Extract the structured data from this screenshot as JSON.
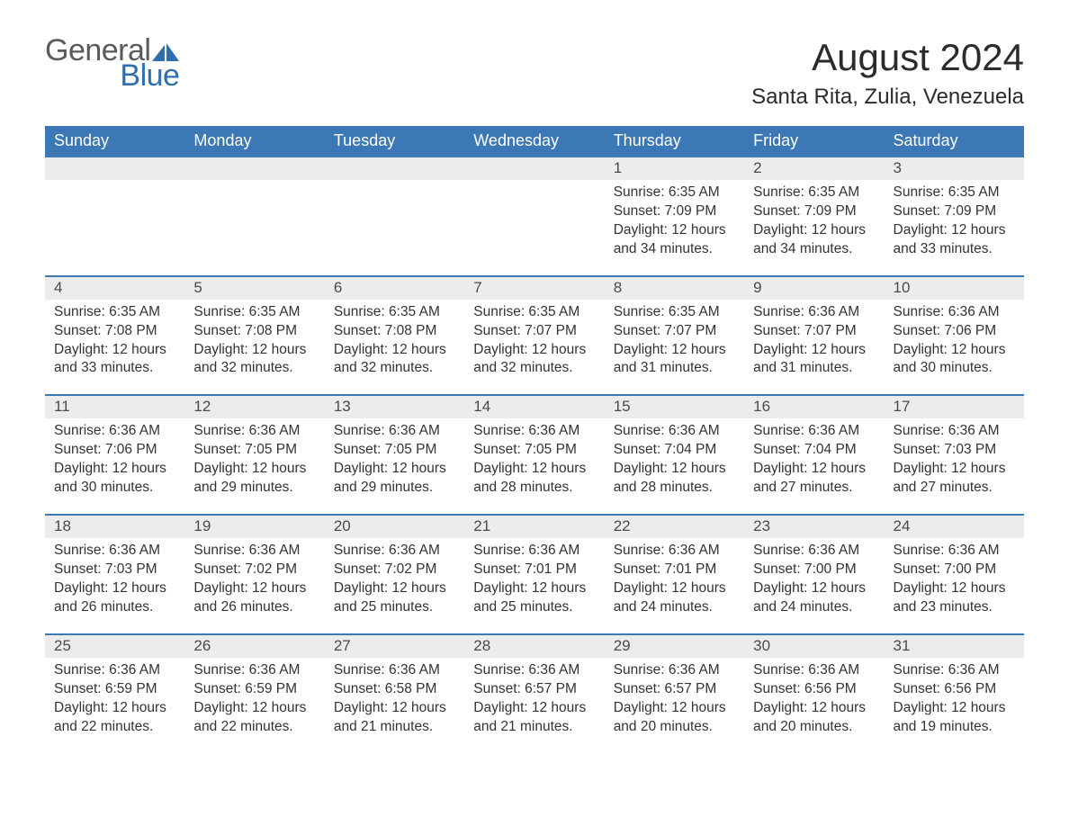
{
  "logo": {
    "text_general": "General",
    "text_blue": "Blue",
    "icon_color": "#2f6fb0"
  },
  "title": "August 2024",
  "location": "Santa Rita, Zulia, Venezuela",
  "colors": {
    "header_bg": "#3b78b5",
    "header_text": "#ffffff",
    "daynum_bg": "#ececec",
    "daynum_text": "#4a4a4a",
    "body_text": "#333333",
    "rule": "#3b78b5",
    "logo_gray": "#5a5a5a",
    "logo_blue": "#2f6fb0",
    "page_bg": "#ffffff"
  },
  "typography": {
    "family": "Arial",
    "title_fontsize": 42,
    "location_fontsize": 24,
    "weekday_fontsize": 18,
    "daynum_fontsize": 17,
    "body_fontsize": 15.5
  },
  "weekdays": [
    "Sunday",
    "Monday",
    "Tuesday",
    "Wednesday",
    "Thursday",
    "Friday",
    "Saturday"
  ],
  "weeks": [
    [
      null,
      null,
      null,
      null,
      {
        "n": "1",
        "sunrise": "6:35 AM",
        "sunset": "7:09 PM",
        "daylight": "12 hours and 34 minutes."
      },
      {
        "n": "2",
        "sunrise": "6:35 AM",
        "sunset": "7:09 PM",
        "daylight": "12 hours and 34 minutes."
      },
      {
        "n": "3",
        "sunrise": "6:35 AM",
        "sunset": "7:09 PM",
        "daylight": "12 hours and 33 minutes."
      }
    ],
    [
      {
        "n": "4",
        "sunrise": "6:35 AM",
        "sunset": "7:08 PM",
        "daylight": "12 hours and 33 minutes."
      },
      {
        "n": "5",
        "sunrise": "6:35 AM",
        "sunset": "7:08 PM",
        "daylight": "12 hours and 32 minutes."
      },
      {
        "n": "6",
        "sunrise": "6:35 AM",
        "sunset": "7:08 PM",
        "daylight": "12 hours and 32 minutes."
      },
      {
        "n": "7",
        "sunrise": "6:35 AM",
        "sunset": "7:07 PM",
        "daylight": "12 hours and 32 minutes."
      },
      {
        "n": "8",
        "sunrise": "6:35 AM",
        "sunset": "7:07 PM",
        "daylight": "12 hours and 31 minutes."
      },
      {
        "n": "9",
        "sunrise": "6:36 AM",
        "sunset": "7:07 PM",
        "daylight": "12 hours and 31 minutes."
      },
      {
        "n": "10",
        "sunrise": "6:36 AM",
        "sunset": "7:06 PM",
        "daylight": "12 hours and 30 minutes."
      }
    ],
    [
      {
        "n": "11",
        "sunrise": "6:36 AM",
        "sunset": "7:06 PM",
        "daylight": "12 hours and 30 minutes."
      },
      {
        "n": "12",
        "sunrise": "6:36 AM",
        "sunset": "7:05 PM",
        "daylight": "12 hours and 29 minutes."
      },
      {
        "n": "13",
        "sunrise": "6:36 AM",
        "sunset": "7:05 PM",
        "daylight": "12 hours and 29 minutes."
      },
      {
        "n": "14",
        "sunrise": "6:36 AM",
        "sunset": "7:05 PM",
        "daylight": "12 hours and 28 minutes."
      },
      {
        "n": "15",
        "sunrise": "6:36 AM",
        "sunset": "7:04 PM",
        "daylight": "12 hours and 28 minutes."
      },
      {
        "n": "16",
        "sunrise": "6:36 AM",
        "sunset": "7:04 PM",
        "daylight": "12 hours and 27 minutes."
      },
      {
        "n": "17",
        "sunrise": "6:36 AM",
        "sunset": "7:03 PM",
        "daylight": "12 hours and 27 minutes."
      }
    ],
    [
      {
        "n": "18",
        "sunrise": "6:36 AM",
        "sunset": "7:03 PM",
        "daylight": "12 hours and 26 minutes."
      },
      {
        "n": "19",
        "sunrise": "6:36 AM",
        "sunset": "7:02 PM",
        "daylight": "12 hours and 26 minutes."
      },
      {
        "n": "20",
        "sunrise": "6:36 AM",
        "sunset": "7:02 PM",
        "daylight": "12 hours and 25 minutes."
      },
      {
        "n": "21",
        "sunrise": "6:36 AM",
        "sunset": "7:01 PM",
        "daylight": "12 hours and 25 minutes."
      },
      {
        "n": "22",
        "sunrise": "6:36 AM",
        "sunset": "7:01 PM",
        "daylight": "12 hours and 24 minutes."
      },
      {
        "n": "23",
        "sunrise": "6:36 AM",
        "sunset": "7:00 PM",
        "daylight": "12 hours and 24 minutes."
      },
      {
        "n": "24",
        "sunrise": "6:36 AM",
        "sunset": "7:00 PM",
        "daylight": "12 hours and 23 minutes."
      }
    ],
    [
      {
        "n": "25",
        "sunrise": "6:36 AM",
        "sunset": "6:59 PM",
        "daylight": "12 hours and 22 minutes."
      },
      {
        "n": "26",
        "sunrise": "6:36 AM",
        "sunset": "6:59 PM",
        "daylight": "12 hours and 22 minutes."
      },
      {
        "n": "27",
        "sunrise": "6:36 AM",
        "sunset": "6:58 PM",
        "daylight": "12 hours and 21 minutes."
      },
      {
        "n": "28",
        "sunrise": "6:36 AM",
        "sunset": "6:57 PM",
        "daylight": "12 hours and 21 minutes."
      },
      {
        "n": "29",
        "sunrise": "6:36 AM",
        "sunset": "6:57 PM",
        "daylight": "12 hours and 20 minutes."
      },
      {
        "n": "30",
        "sunrise": "6:36 AM",
        "sunset": "6:56 PM",
        "daylight": "12 hours and 20 minutes."
      },
      {
        "n": "31",
        "sunrise": "6:36 AM",
        "sunset": "6:56 PM",
        "daylight": "12 hours and 19 minutes."
      }
    ]
  ],
  "labels": {
    "sunrise": "Sunrise:",
    "sunset": "Sunset:",
    "daylight": "Daylight:"
  }
}
